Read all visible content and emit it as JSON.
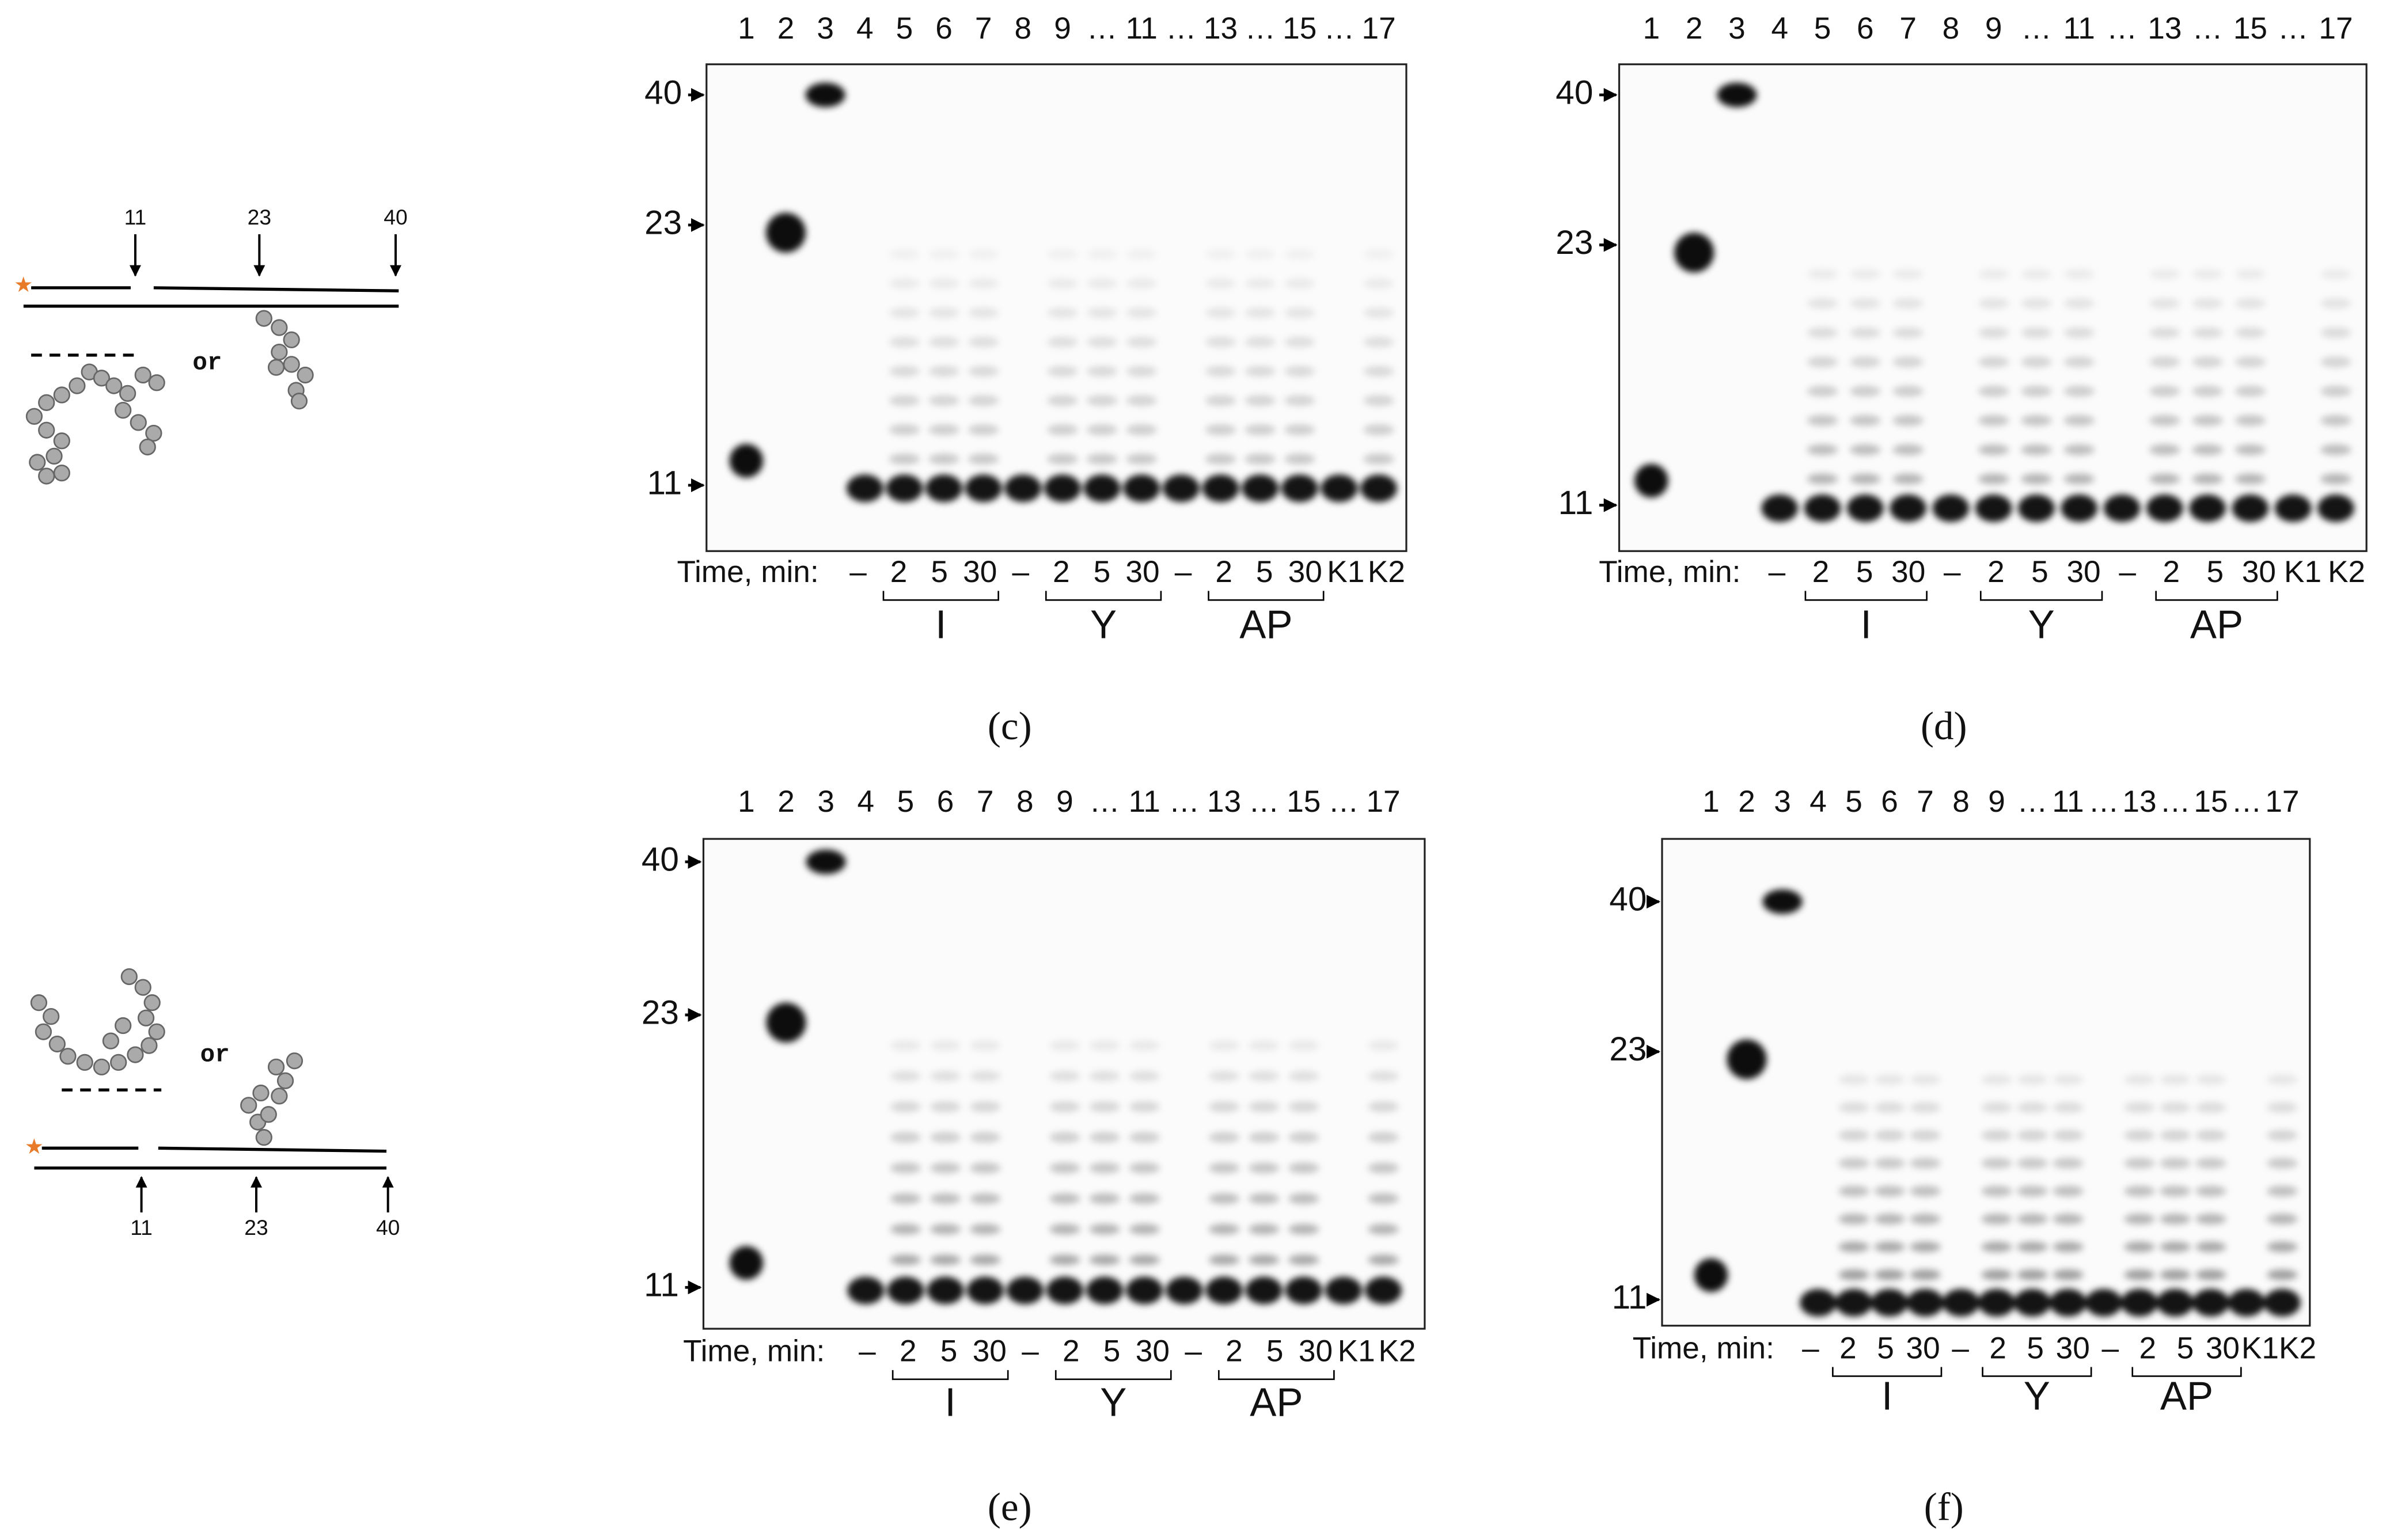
{
  "panels": [
    {
      "label": "(c)",
      "lanes": [
        "1",
        "2",
        "3",
        "4",
        "5",
        "6",
        "7",
        "8",
        "9",
        "…",
        "11",
        "…",
        "13",
        "…",
        "15",
        "…",
        "17"
      ],
      "markers": [
        "40",
        "23",
        "11"
      ],
      "time_label": "Time, min:",
      "time_values": [
        "–",
        "2",
        "5",
        "30",
        "–",
        "2",
        "5",
        "30",
        "–",
        "2",
        "5",
        "30",
        "K1",
        "K2"
      ],
      "groups": [
        "I",
        "Y",
        "AP"
      ]
    },
    {
      "label": "(d)",
      "lanes": [
        "1",
        "2",
        "3",
        "4",
        "5",
        "6",
        "7",
        "8",
        "9",
        "…",
        "11",
        "…",
        "13",
        "…",
        "15",
        "…",
        "17"
      ],
      "markers": [
        "40",
        "23",
        "11"
      ],
      "time_label": "Time, min:",
      "time_values": [
        "–",
        "2",
        "5",
        "30",
        "–",
        "2",
        "5",
        "30",
        "–",
        "2",
        "5",
        "30",
        "K1",
        "K2"
      ],
      "groups": [
        "I",
        "Y",
        "AP"
      ]
    },
    {
      "label": "(e)",
      "lanes": [
        "1",
        "2",
        "3",
        "4",
        "5",
        "6",
        "7",
        "8",
        "9",
        "…",
        "11",
        "…",
        "13",
        "…",
        "15",
        "…",
        "17"
      ],
      "markers": [
        "40",
        "23",
        "11"
      ],
      "time_label": "Time, min:",
      "time_values": [
        "–",
        "2",
        "5",
        "30",
        "–",
        "2",
        "5",
        "30",
        "–",
        "2",
        "5",
        "30",
        "K1",
        "K2"
      ],
      "groups": [
        "I",
        "Y",
        "AP"
      ]
    },
    {
      "label": "(f)",
      "lanes": [
        "1",
        "2",
        "3",
        "4",
        "5",
        "6",
        "7",
        "8",
        "9",
        "…",
        "11",
        "…",
        "13",
        "…",
        "15",
        "…",
        "17"
      ],
      "markers": [
        "40",
        "23",
        "11"
      ],
      "time_label": "Time, min:",
      "time_values": [
        "–",
        "2",
        "5",
        "30",
        "–",
        "2",
        "5",
        "30",
        "–",
        "2",
        "5",
        "30",
        "K1",
        "K2"
      ],
      "groups": [
        "I",
        "Y",
        "AP"
      ]
    }
  ],
  "diagrams": [
    {
      "positions": [
        "11",
        "23",
        "40"
      ],
      "connector": "or"
    },
    {
      "positions": [
        "11",
        "23",
        "40"
      ],
      "connector": "or"
    }
  ]
}
